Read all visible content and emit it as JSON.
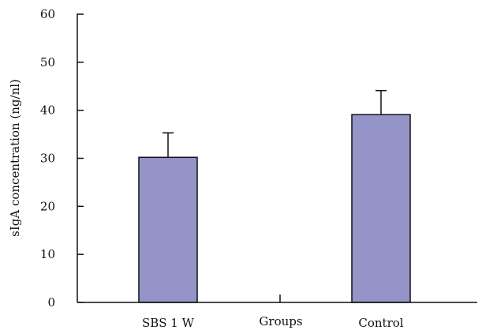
{
  "chart_data": {
    "type": "bar",
    "title": "",
    "xlabel": "Groups",
    "ylabel": "sIgA concentration (ng/nl)",
    "categories": [
      "SBS 1 W",
      "Control"
    ],
    "values": [
      30.2,
      39.1
    ],
    "error_plus": [
      5.1,
      5.0
    ],
    "ylim": [
      0,
      60
    ],
    "yticks": [
      0,
      10,
      20,
      30,
      40,
      50,
      60
    ],
    "bar_color": "#9494c8",
    "grid": false,
    "legend": false
  }
}
